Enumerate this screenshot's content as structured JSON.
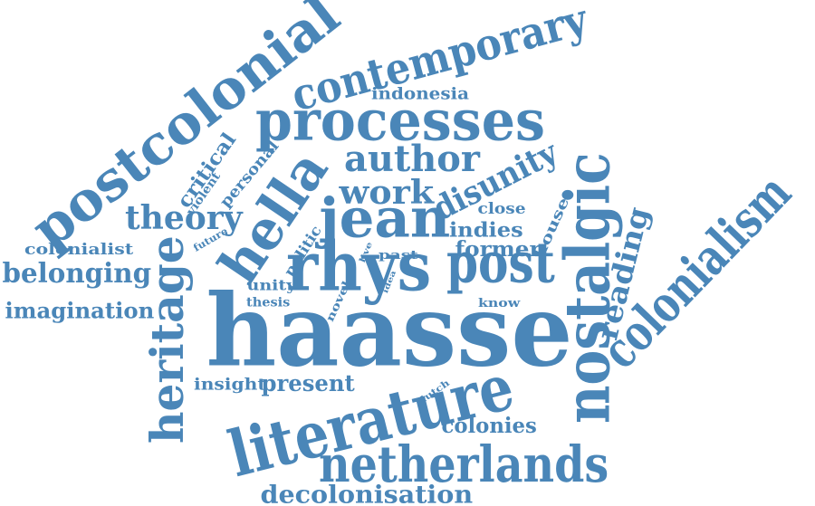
{
  "colors": {
    "text": "#4a86b8",
    "background": "#ffffff"
  },
  "words": [
    "haasse",
    "literature",
    "netherlands",
    "nostalgic",
    "colonialism",
    "rhys",
    "post",
    "jean",
    "hella",
    "postcolonial",
    "processes",
    "contemporary",
    "heritage",
    "author",
    "work",
    "disunity",
    "theory",
    "reading",
    "decolonisation",
    "belonging",
    "imagination",
    "colonialist",
    "present",
    "colonies",
    "insight",
    "indies",
    "former",
    "close",
    "house",
    "indonesia",
    "critical",
    "violent",
    "personal",
    "future",
    "politic",
    "unity",
    "thesis",
    "novel",
    "live",
    "idea",
    "past",
    "know",
    "dutch"
  ]
}
